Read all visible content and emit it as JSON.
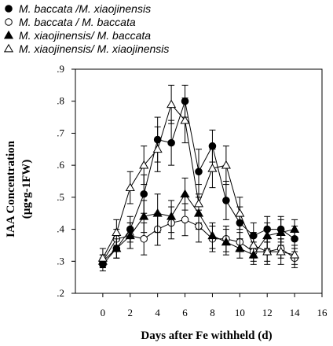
{
  "chart_data": {
    "type": "line",
    "title": "",
    "xlabel": "Days after  Fe withheld (d)",
    "ylabel": "IAA Concentration",
    "ylabel_unit": "(µg•g-1FW)",
    "xlim": [
      -2,
      16
    ],
    "ylim": [
      0.2,
      0.9
    ],
    "xticks": [
      0,
      2,
      4,
      6,
      8,
      10,
      12,
      14,
      16
    ],
    "yticks": [
      0.2,
      0.3,
      0.4,
      0.5,
      0.6,
      0.7,
      0.8,
      0.9
    ],
    "ytick_labels": [
      ".2",
      ".3",
      ".4",
      ".5",
      ".6",
      ".7",
      ".8",
      ".9"
    ],
    "grid": false,
    "legend_position": "top-left, above plot",
    "x": [
      0,
      1,
      2,
      3,
      4,
      5,
      6,
      7,
      8,
      9,
      10,
      11,
      12,
      13,
      14
    ],
    "series": [
      {
        "name": "M. baccata /M. xiaojinensis",
        "marker": "filled-circle",
        "values": [
          0.29,
          0.34,
          0.4,
          0.51,
          0.68,
          0.67,
          0.8,
          0.58,
          0.66,
          0.49,
          0.42,
          0.38,
          0.4,
          0.4,
          0.37
        ],
        "errors": [
          0.02,
          0.03,
          0.04,
          0.06,
          0.07,
          0.07,
          0.05,
          0.07,
          0.05,
          0.06,
          0.05,
          0.04,
          0.04,
          0.04,
          0.04
        ]
      },
      {
        "name": "M. baccata / M. baccata",
        "marker": "open-circle",
        "values": [
          0.3,
          0.37,
          0.38,
          0.37,
          0.4,
          0.42,
          0.43,
          0.41,
          0.37,
          0.37,
          0.36,
          0.33,
          0.33,
          0.34,
          0.31
        ],
        "errors": [
          0.02,
          0.03,
          0.04,
          0.05,
          0.05,
          0.05,
          0.05,
          0.05,
          0.04,
          0.04,
          0.03,
          0.03,
          0.03,
          0.03,
          0.03
        ]
      },
      {
        "name": "M. xiaojinensis/ M. baccata",
        "marker": "filled-triangle",
        "values": [
          0.3,
          0.34,
          0.38,
          0.44,
          0.45,
          0.44,
          0.51,
          0.45,
          0.38,
          0.36,
          0.34,
          0.32,
          0.38,
          0.39,
          0.4
        ],
        "errors": [
          0.02,
          0.03,
          0.04,
          0.05,
          0.06,
          0.05,
          0.05,
          0.05,
          0.04,
          0.04,
          0.03,
          0.03,
          0.04,
          0.04,
          0.03
        ]
      },
      {
        "name": "M. xiaojinensis/ M. xiaojinensis",
        "marker": "open-triangle",
        "values": [
          0.31,
          0.39,
          0.53,
          0.6,
          0.65,
          0.79,
          0.74,
          0.48,
          0.59,
          0.6,
          0.45,
          0.35,
          0.33,
          0.33,
          0.32
        ],
        "errors": [
          0.03,
          0.04,
          0.05,
          0.06,
          0.07,
          0.06,
          0.07,
          0.06,
          0.06,
          0.06,
          0.05,
          0.04,
          0.04,
          0.04,
          0.03
        ]
      }
    ]
  }
}
